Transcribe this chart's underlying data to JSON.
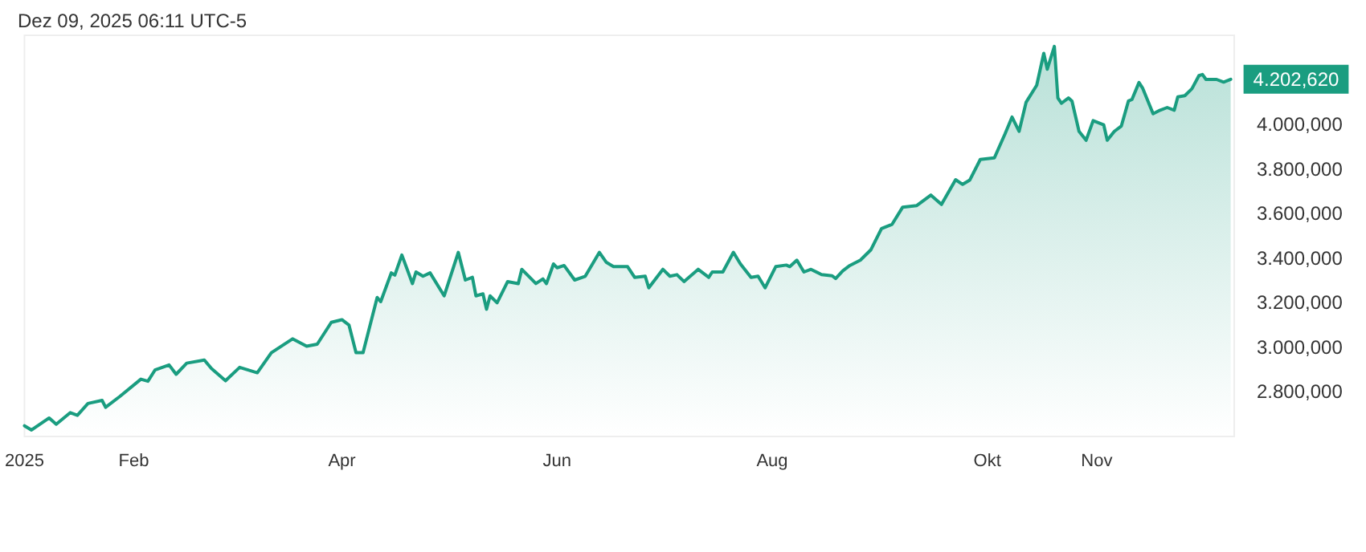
{
  "chart_data": {
    "type": "area",
    "title": "Dez 09, 2025 06:11 UTC-5",
    "x": [
      "2025-01-01",
      "2025-01-03",
      "2025-01-08",
      "2025-01-10",
      "2025-01-14",
      "2025-01-16",
      "2025-01-19",
      "2025-01-23",
      "2025-01-24",
      "2025-01-28",
      "2025-02-03",
      "2025-02-05",
      "2025-02-07",
      "2025-02-11",
      "2025-02-13",
      "2025-02-16",
      "2025-02-21",
      "2025-02-23",
      "2025-02-27",
      "2025-03-03",
      "2025-03-08",
      "2025-03-12",
      "2025-03-18",
      "2025-03-22",
      "2025-03-25",
      "2025-03-29",
      "2025-04-01",
      "2025-04-03",
      "2025-04-05",
      "2025-04-07",
      "2025-04-11",
      "2025-04-12",
      "2025-04-15",
      "2025-04-16",
      "2025-04-18",
      "2025-04-21",
      "2025-04-22",
      "2025-04-24",
      "2025-04-26",
      "2025-04-30",
      "2025-05-04",
      "2025-05-06",
      "2025-05-08",
      "2025-05-09",
      "2025-05-11",
      "2025-05-12",
      "2025-05-13",
      "2025-05-15",
      "2025-05-18",
      "2025-05-21",
      "2025-05-22",
      "2025-05-26",
      "2025-05-28",
      "2025-05-29",
      "2025-05-31",
      "2025-06-01",
      "2025-06-03",
      "2025-06-06",
      "2025-06-09",
      "2025-06-13",
      "2025-06-15",
      "2025-06-17",
      "2025-06-21",
      "2025-06-23",
      "2025-06-26",
      "2025-06-27",
      "2025-07-01",
      "2025-07-03",
      "2025-07-05",
      "2025-07-07",
      "2025-07-11",
      "2025-07-14",
      "2025-07-15",
      "2025-07-18",
      "2025-07-21",
      "2025-07-23",
      "2025-07-26",
      "2025-07-28",
      "2025-07-30",
      "2025-08-02",
      "2025-08-05",
      "2025-08-06",
      "2025-08-08",
      "2025-08-10",
      "2025-08-12",
      "2025-08-15",
      "2025-08-18",
      "2025-08-19",
      "2025-08-21",
      "2025-08-23",
      "2025-08-26",
      "2025-08-29",
      "2025-09-01",
      "2025-09-04",
      "2025-09-07",
      "2025-09-11",
      "2025-09-15",
      "2025-09-18",
      "2025-09-22",
      "2025-09-24",
      "2025-09-26",
      "2025-09-29",
      "2025-10-03",
      "2025-10-06",
      "2025-10-08",
      "2025-10-10",
      "2025-10-12",
      "2025-10-15",
      "2025-10-17",
      "2025-10-18",
      "2025-10-20",
      "2025-10-21",
      "2025-10-22",
      "2025-10-24",
      "2025-10-25",
      "2025-10-27",
      "2025-10-29",
      "2025-10-31",
      "2025-11-03",
      "2025-11-04",
      "2025-11-06",
      "2025-11-08",
      "2025-11-10",
      "2025-11-11",
      "2025-11-13",
      "2025-11-14",
      "2025-11-17",
      "2025-11-19",
      "2025-11-21",
      "2025-11-23",
      "2025-11-24",
      "2025-11-26",
      "2025-11-28",
      "2025-11-30",
      "2025-12-01",
      "2025-12-02",
      "2025-12-05",
      "2025-12-07",
      "2025-12-09"
    ],
    "series": [
      {
        "color": "#1a9d80",
        "values": [
          2648,
          2629,
          2683,
          2655,
          2707,
          2695,
          2748,
          2762,
          2731,
          2779,
          2857,
          2848,
          2898,
          2921,
          2879,
          2929,
          2943,
          2905,
          2850,
          2910,
          2886,
          2976,
          3038,
          3005,
          3014,
          3112,
          3124,
          3100,
          2976,
          2976,
          3224,
          3205,
          3334,
          3324,
          3414,
          3286,
          3338,
          3319,
          3334,
          3231,
          3426,
          3302,
          3314,
          3231,
          3240,
          3171,
          3231,
          3200,
          3295,
          3286,
          3350,
          3286,
          3307,
          3286,
          3374,
          3357,
          3367,
          3302,
          3319,
          3426,
          3381,
          3362,
          3362,
          3314,
          3319,
          3267,
          3350,
          3319,
          3326,
          3295,
          3350,
          3314,
          3338,
          3338,
          3426,
          3374,
          3314,
          3319,
          3267,
          3362,
          3369,
          3362,
          3391,
          3338,
          3350,
          3326,
          3321,
          3309,
          3343,
          3367,
          3391,
          3438,
          3533,
          3552,
          3629,
          3636,
          3683,
          3641,
          3752,
          3731,
          3750,
          3843,
          3850,
          3957,
          4033,
          3969,
          4100,
          4176,
          4319,
          4248,
          4350,
          4119,
          4095,
          4119,
          4105,
          3969,
          3929,
          4017,
          3998,
          3929,
          3969,
          3993,
          4105,
          4112,
          4188,
          4164,
          4048,
          4064,
          4076,
          4064,
          4124,
          4129,
          4160,
          4219,
          4224,
          4202,
          4202,
          4190,
          4202.62
        ],
        "value_labels": [
          null,
          null,
          null,
          null,
          null,
          null,
          null,
          null,
          null,
          null,
          null,
          null,
          null,
          null,
          null,
          null,
          null,
          null,
          null,
          null,
          null,
          null,
          null,
          null,
          null,
          null,
          null,
          null,
          null,
          null,
          null,
          null,
          null,
          null,
          null,
          null,
          null,
          null,
          null,
          null,
          null,
          null,
          null,
          null,
          null,
          null,
          null,
          null,
          null,
          null,
          null,
          null,
          null,
          null,
          null,
          null,
          null,
          null,
          null,
          null,
          null,
          null,
          null,
          null,
          null,
          null,
          null,
          null,
          null,
          null,
          null,
          null,
          null,
          null,
          null,
          null,
          null,
          null,
          null,
          null,
          null,
          null,
          null,
          null,
          null,
          null,
          null,
          null,
          null,
          null,
          null,
          null,
          null,
          null,
          null,
          null,
          null,
          null,
          null,
          null,
          null,
          null,
          null,
          null,
          null,
          null,
          null,
          null,
          null,
          null,
          null,
          null,
          null,
          null,
          null,
          null,
          null,
          null,
          null,
          null,
          null,
          null,
          null,
          null,
          null,
          null,
          null,
          null,
          null,
          null,
          null,
          null,
          null,
          null,
          null,
          null,
          null,
          null,
          "4.202,620"
        ]
      }
    ],
    "xlim": [
      "2025-01-01",
      "2025-12-10"
    ],
    "xticks": [
      {
        "value": "2025-01-01",
        "label": "2025"
      },
      {
        "value": "2025-02-01",
        "label": "Feb"
      },
      {
        "value": "2025-04-01",
        "label": "Apr"
      },
      {
        "value": "2025-06-01",
        "label": "Jun"
      },
      {
        "value": "2025-08-01",
        "label": "Aug"
      },
      {
        "value": "2025-10-01",
        "label": "Okt"
      },
      {
        "value": "2025-11-01",
        "label": "Nov"
      }
    ],
    "ylim": [
      2600,
      4400
    ],
    "yticks": [
      {
        "value": 2800,
        "label": "2.800,000"
      },
      {
        "value": 3000,
        "label": "3.000,000"
      },
      {
        "value": 3200,
        "label": "3.200,000"
      },
      {
        "value": 3400,
        "label": "3.400,000"
      },
      {
        "value": 3600,
        "label": "3.600,000"
      },
      {
        "value": 3800,
        "label": "3.800,000"
      },
      {
        "value": 4000,
        "label": "4.000,000"
      }
    ],
    "grid": false,
    "marker": "none",
    "line_style": "solid"
  }
}
